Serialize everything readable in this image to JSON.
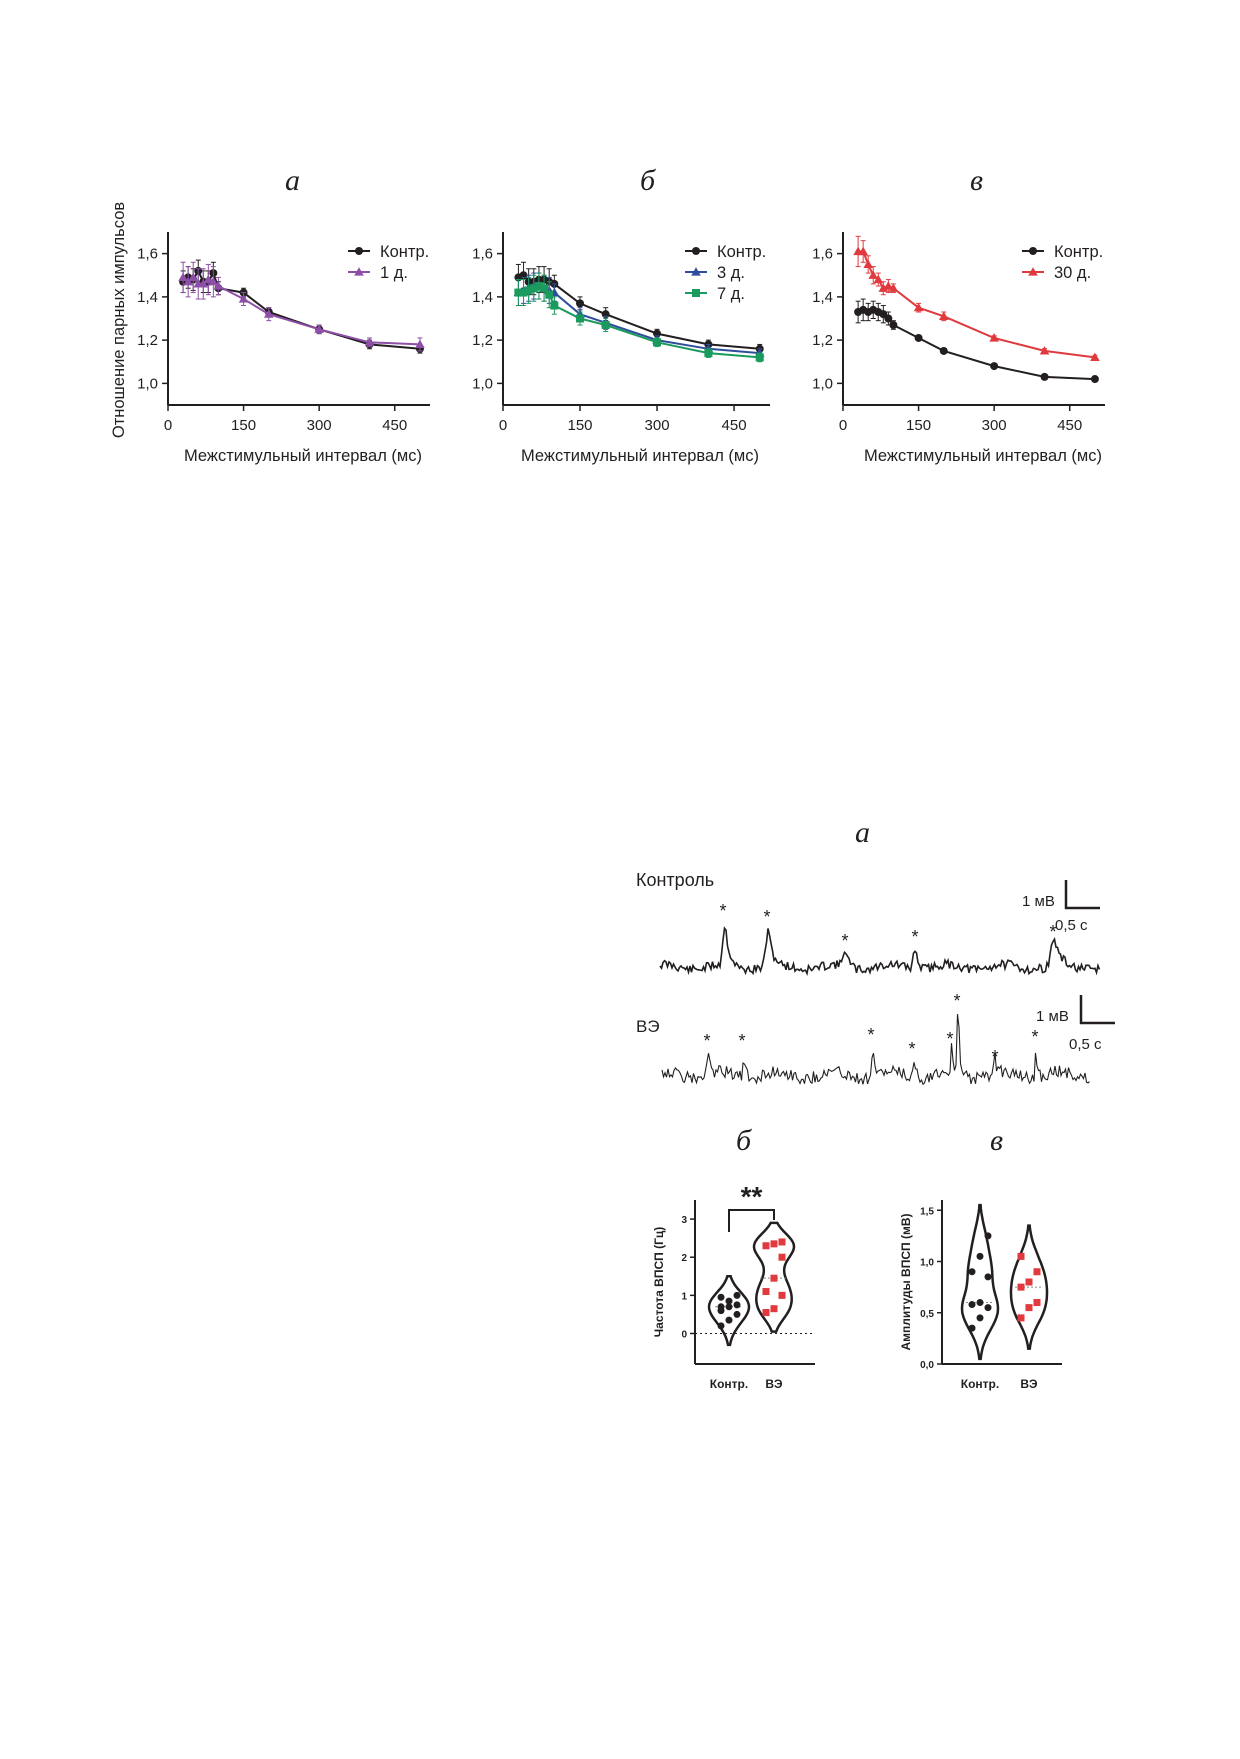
{
  "top": {
    "panel_labels": [
      "а",
      "б",
      "в"
    ],
    "ylabel": "Отношение парных импульсов",
    "xlabel": "Межстимульный интервал (мс)",
    "x_ticks": [
      "0",
      "150",
      "300",
      "450"
    ],
    "y_ticks": [
      "1,0",
      "1,2",
      "1,4",
      "1,6"
    ]
  },
  "chart_data": [
    {
      "type": "line",
      "panel": "а",
      "xlim": [
        0,
        520
      ],
      "ylim": [
        0.9,
        1.7
      ],
      "xlabel": "Межстимульный интервал (мс)",
      "ylabel": "Отношение парных импульсов",
      "legend_position": "top-right",
      "series": [
        {
          "name": "Контр.",
          "color": "#231f20",
          "marker": "circle",
          "x": [
            30,
            40,
            50,
            60,
            70,
            80,
            90,
            100,
            150,
            200,
            300,
            400,
            500
          ],
          "y": [
            1.47,
            1.49,
            1.48,
            1.52,
            1.47,
            1.47,
            1.51,
            1.44,
            1.42,
            1.33,
            1.25,
            1.18,
            1.16
          ],
          "err": [
            0.05,
            0.05,
            0.05,
            0.05,
            0.05,
            0.05,
            0.05,
            0.03,
            0.02,
            0.02,
            0.02,
            0.02,
            0.02
          ]
        },
        {
          "name": "1 д.",
          "color": "#8e4fa8",
          "marker": "triangle",
          "x": [
            30,
            40,
            50,
            60,
            70,
            80,
            90,
            100,
            150,
            200,
            300,
            400,
            500
          ],
          "y": [
            1.49,
            1.47,
            1.49,
            1.46,
            1.46,
            1.48,
            1.47,
            1.45,
            1.39,
            1.32,
            1.25,
            1.19,
            1.18
          ],
          "err": [
            0.07,
            0.07,
            0.07,
            0.07,
            0.07,
            0.07,
            0.07,
            0.04,
            0.03,
            0.03,
            0.02,
            0.02,
            0.03
          ]
        }
      ]
    },
    {
      "type": "line",
      "panel": "б",
      "xlim": [
        0,
        520
      ],
      "ylim": [
        0.9,
        1.7
      ],
      "xlabel": "Межстимульный интервал (мс)",
      "legend_position": "top-right",
      "series": [
        {
          "name": "Контр.",
          "color": "#231f20",
          "marker": "circle",
          "x": [
            30,
            40,
            50,
            60,
            70,
            80,
            90,
            100,
            150,
            200,
            300,
            400,
            500
          ],
          "y": [
            1.49,
            1.5,
            1.47,
            1.47,
            1.48,
            1.48,
            1.47,
            1.46,
            1.37,
            1.32,
            1.23,
            1.18,
            1.16
          ],
          "err": [
            0.06,
            0.06,
            0.06,
            0.06,
            0.06,
            0.06,
            0.06,
            0.04,
            0.03,
            0.03,
            0.02,
            0.02,
            0.02
          ]
        },
        {
          "name": "3 д.",
          "color": "#2e4d9b",
          "marker": "triangle",
          "x": [
            30,
            40,
            50,
            60,
            70,
            80,
            90,
            100,
            150,
            200,
            300,
            400,
            500
          ],
          "y": [
            1.42,
            1.43,
            1.44,
            1.45,
            1.45,
            1.44,
            1.43,
            1.42,
            1.32,
            1.28,
            1.2,
            1.16,
            1.14
          ],
          "err": [
            0.06,
            0.06,
            0.06,
            0.06,
            0.06,
            0.06,
            0.06,
            0.04,
            0.03,
            0.03,
            0.02,
            0.02,
            0.02
          ]
        },
        {
          "name": "7 д.",
          "color": "#1a9a5c",
          "marker": "square",
          "x": [
            30,
            40,
            50,
            60,
            70,
            80,
            90,
            100,
            150,
            200,
            300,
            400,
            500
          ],
          "y": [
            1.42,
            1.42,
            1.43,
            1.44,
            1.45,
            1.44,
            1.41,
            1.36,
            1.3,
            1.27,
            1.19,
            1.14,
            1.12
          ],
          "err": [
            0.06,
            0.06,
            0.06,
            0.06,
            0.06,
            0.06,
            0.06,
            0.04,
            0.03,
            0.03,
            0.02,
            0.02,
            0.02
          ]
        }
      ]
    },
    {
      "type": "line",
      "panel": "в",
      "xlim": [
        0,
        520
      ],
      "ylim": [
        0.9,
        1.7
      ],
      "xlabel": "Межстимульный интервал (мс)",
      "legend_position": "top-right",
      "series": [
        {
          "name": "Контр.",
          "color": "#231f20",
          "marker": "circle",
          "x": [
            30,
            40,
            50,
            60,
            70,
            80,
            90,
            100,
            150,
            200,
            300,
            400,
            500
          ],
          "y": [
            1.33,
            1.34,
            1.33,
            1.34,
            1.33,
            1.32,
            1.3,
            1.27,
            1.21,
            1.15,
            1.08,
            1.03,
            1.02
          ],
          "err": [
            0.05,
            0.05,
            0.04,
            0.04,
            0.04,
            0.04,
            0.03,
            0.02,
            0.01,
            0.01,
            0.01,
            0.01,
            0.01
          ]
        },
        {
          "name": "30 д.",
          "color": "#e03a3e",
          "marker": "triangle",
          "x": [
            30,
            40,
            50,
            60,
            70,
            80,
            90,
            100,
            150,
            200,
            300,
            400,
            500
          ],
          "y": [
            1.61,
            1.61,
            1.55,
            1.5,
            1.48,
            1.44,
            1.45,
            1.44,
            1.35,
            1.31,
            1.21,
            1.15,
            1.12
          ],
          "err": [
            0.07,
            0.05,
            0.04,
            0.04,
            0.03,
            0.03,
            0.03,
            0.02,
            0.02,
            0.02,
            0.01,
            0.01,
            0.01
          ]
        }
      ]
    },
    {
      "type": "scatter",
      "panel": "б (нижний)",
      "plot": "violin",
      "ylabel": "Частота ВПСП (Гц)",
      "ylim": [
        -0.8,
        3.5
      ],
      "yticks": [
        "0",
        "1",
        "2",
        "3"
      ],
      "categories": [
        "Контр.",
        "ВЭ"
      ],
      "significance": "**",
      "series": [
        {
          "name": "Контр.",
          "color": "#231f20",
          "marker": "circle",
          "values": [
            0.2,
            0.35,
            0.5,
            0.6,
            0.7,
            0.75,
            0.7,
            0.85,
            1.0,
            0.95
          ]
        },
        {
          "name": "ВЭ",
          "color": "#e03a3e",
          "marker": "square",
          "values": [
            0.55,
            0.65,
            1.0,
            1.1,
            1.45,
            2.0,
            2.3,
            2.35,
            2.4
          ]
        }
      ]
    },
    {
      "type": "scatter",
      "panel": "в (нижний)",
      "plot": "violin",
      "ylabel": "Амплитуды ВПСП (мВ)",
      "ylim": [
        0,
        1.6
      ],
      "yticks": [
        "0,0",
        "0,5",
        "1,0",
        "1,5"
      ],
      "categories": [
        "Контр.",
        "ВЭ"
      ],
      "series": [
        {
          "name": "Контр.",
          "color": "#231f20",
          "marker": "circle",
          "values": [
            0.35,
            0.45,
            0.55,
            0.58,
            0.6,
            0.85,
            0.9,
            1.05,
            1.25
          ]
        },
        {
          "name": "ВЭ",
          "color": "#e03a3e",
          "marker": "square",
          "values": [
            0.45,
            0.55,
            0.6,
            0.75,
            0.8,
            0.9,
            1.05
          ]
        }
      ]
    }
  ],
  "traces": {
    "panel_label": "а",
    "control_label": "Контроль",
    "ve_label": "ВЭ",
    "scale_voltage": "1 мВ",
    "scale_time": "0,5 с",
    "event_marker": "*"
  },
  "bottom": {
    "panel_labels": [
      "б",
      "в"
    ]
  }
}
